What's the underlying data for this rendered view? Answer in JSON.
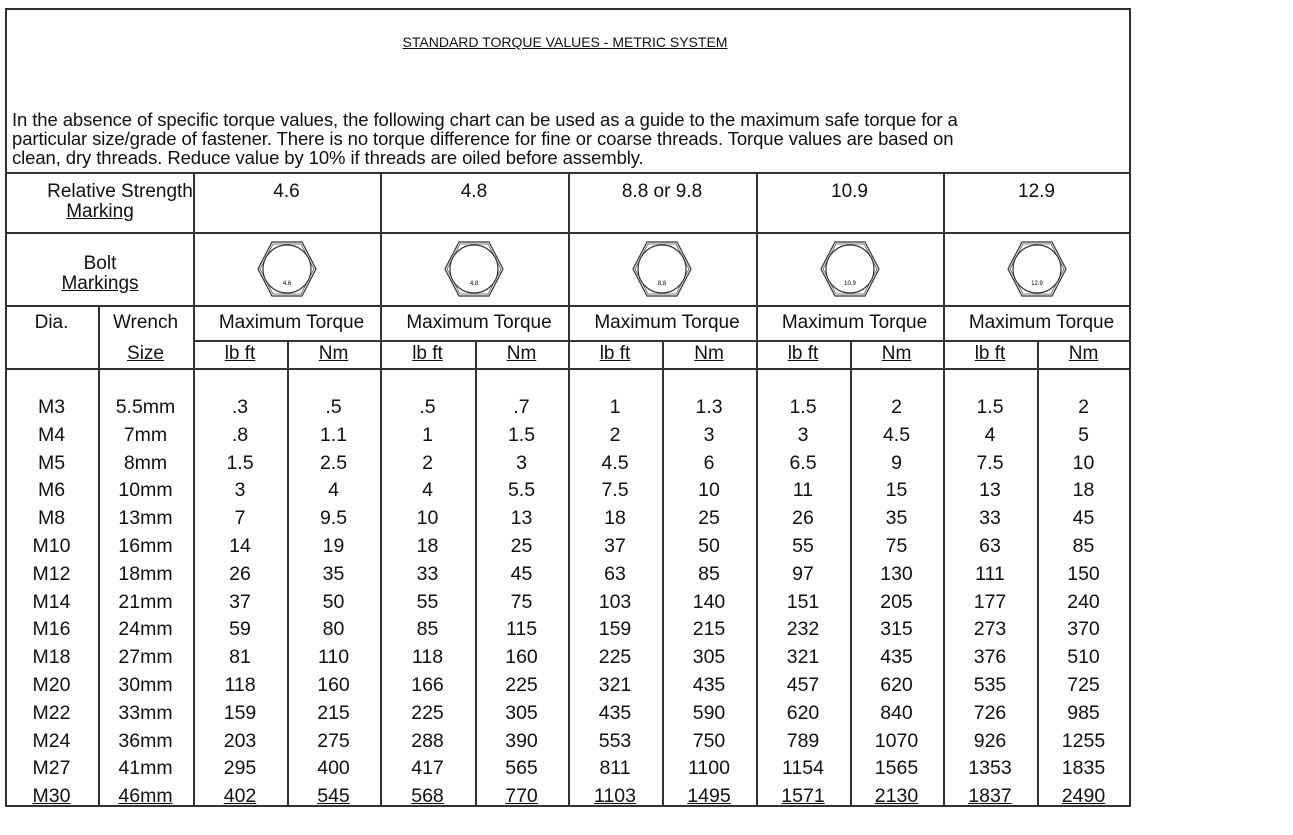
{
  "document": {
    "title": "STANDARD TORQUE VALUES - METRIC SYSTEM",
    "intro_lines": [
      "In the absence of specific torque values, the following chart can be used as a guide to the maximum safe torque for a",
      "particular size/grade of fastener.  There is no torque difference for fine or coarse threads.  Torque values are based on",
      "clean, dry threads.  Reduce value by 10% if threads are oiled before assembly."
    ]
  },
  "table": {
    "strength_label_1": "Relative Strength",
    "strength_label_2": "Marking",
    "bolt_label_1": "Bolt",
    "bolt_label_2": "Markings",
    "dia_label": "Dia.",
    "wrench_label_1": "Wrench",
    "wrench_label_2": "Size",
    "grades": [
      "4.6",
      "4.8",
      "8.8 or 9.8",
      "10.9",
      "12.9"
    ],
    "bolt_marks": [
      "4.6",
      "4.8",
      "8.8",
      "10.9",
      "12.9"
    ],
    "max_torque_label": "Maximum Torque",
    "unit_lbft": "lb ft",
    "unit_nm": "Nm",
    "rows": [
      [
        "M3",
        "5.5mm",
        ".3",
        ".5",
        ".5",
        ".7",
        "1",
        "1.3",
        "1.5",
        "2",
        "1.5",
        "2"
      ],
      [
        "M4",
        "7mm",
        ".8",
        "1.1",
        "1",
        "1.5",
        "2",
        "3",
        "3",
        "4.5",
        "4",
        "5"
      ],
      [
        "M5",
        "8mm",
        "1.5",
        "2.5",
        "2",
        "3",
        "4.5",
        "6",
        "6.5",
        "9",
        "7.5",
        "10"
      ],
      [
        "M6",
        "10mm",
        "3",
        "4",
        "4",
        "5.5",
        "7.5",
        "10",
        "11",
        "15",
        "13",
        "18"
      ],
      [
        "M8",
        "13mm",
        "7",
        "9.5",
        "10",
        "13",
        "18",
        "25",
        "26",
        "35",
        "33",
        "45"
      ],
      [
        "M10",
        "16mm",
        "14",
        "19",
        "18",
        "25",
        "37",
        "50",
        "55",
        "75",
        "63",
        "85"
      ],
      [
        "M12",
        "18mm",
        "26",
        "35",
        "33",
        "45",
        "63",
        "85",
        "97",
        "130",
        "111",
        "150"
      ],
      [
        "M14",
        "21mm",
        "37",
        "50",
        "55",
        "75",
        "103",
        "140",
        "151",
        "205",
        "177",
        "240"
      ],
      [
        "M16",
        "24mm",
        "59",
        "80",
        "85",
        "115",
        "159",
        "215",
        "232",
        "315",
        "273",
        "370"
      ],
      [
        "M18",
        "27mm",
        "81",
        "110",
        "118",
        "160",
        "225",
        "305",
        "321",
        "435",
        "376",
        "510"
      ],
      [
        "M20",
        "30mm",
        "118",
        "160",
        "166",
        "225",
        "321",
        "435",
        "457",
        "620",
        "535",
        "725"
      ],
      [
        "M22",
        "33mm",
        "159",
        "215",
        "225",
        "305",
        "435",
        "590",
        "620",
        "840",
        "726",
        "985"
      ],
      [
        "M24",
        "36mm",
        "203",
        "275",
        "288",
        "390",
        "553",
        "750",
        "789",
        "1070",
        "926",
        "1255"
      ],
      [
        "M27",
        "41mm",
        "295",
        "400",
        "417",
        "565",
        "811",
        "1100",
        "1154",
        "1565",
        "1353",
        "1835"
      ],
      [
        "M30",
        "46mm",
        "402",
        "545",
        "568",
        "770",
        "1103",
        "1495",
        "1571",
        "2130",
        "1837",
        "2490"
      ]
    ]
  }
}
